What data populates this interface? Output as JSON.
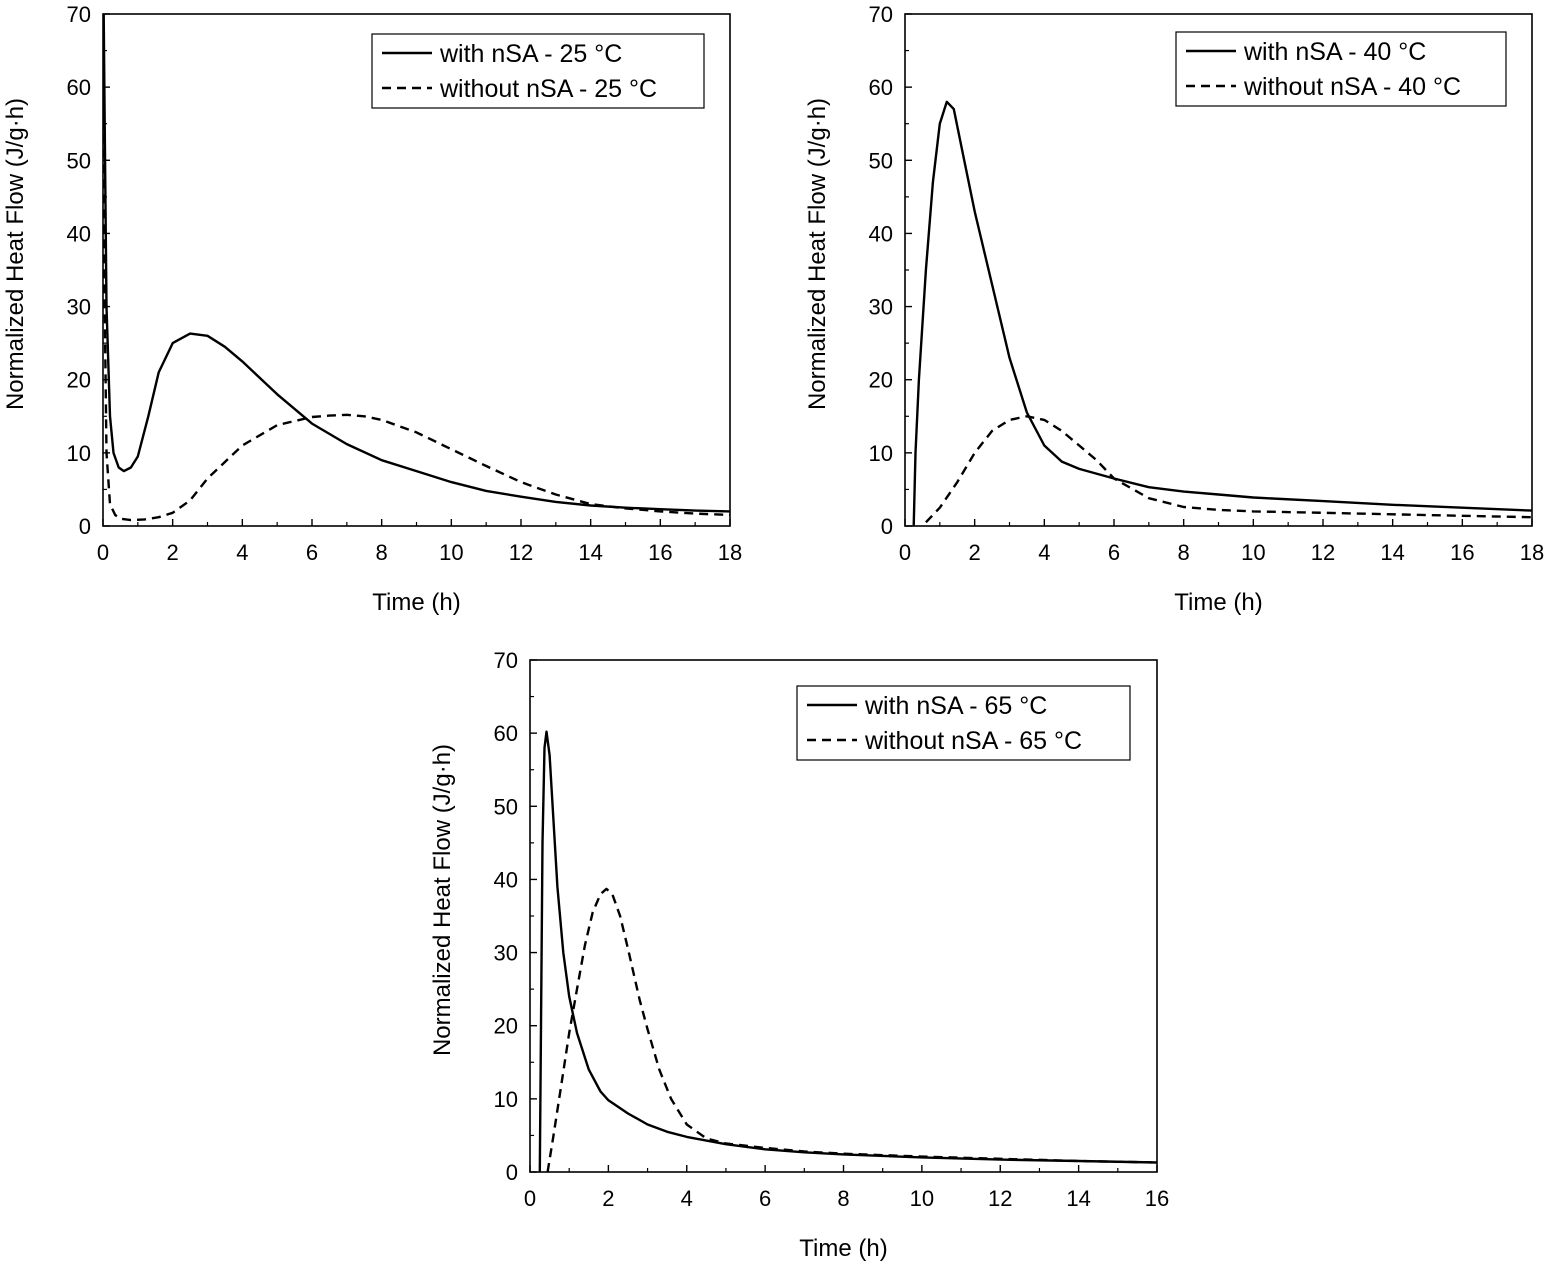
{
  "chart_data": [
    {
      "type": "line",
      "xlabel": "Time (h)",
      "ylabel": "Normalized Heat Flow (J/g·h)",
      "xlim": [
        0,
        18
      ],
      "ylim": [
        0,
        70
      ],
      "xticks": [
        0,
        2,
        4,
        6,
        8,
        10,
        12,
        14,
        16,
        18
      ],
      "yticks": [
        0,
        10,
        20,
        30,
        40,
        50,
        60,
        70
      ],
      "grid": false,
      "legend_position": "top-right",
      "series": [
        {
          "name": "with nSA - 25 °C",
          "style": "solid",
          "x": [
            0,
            0.02,
            0.05,
            0.1,
            0.2,
            0.3,
            0.45,
            0.6,
            0.8,
            1.0,
            1.3,
            1.6,
            2.0,
            2.5,
            3.0,
            3.5,
            4.0,
            5.0,
            6.0,
            7.0,
            8.0,
            9.0,
            10.0,
            11.0,
            12.0,
            13.0,
            14.0,
            15.0,
            16.0,
            17.0,
            18.0
          ],
          "y": [
            72,
            70,
            55,
            30,
            15,
            10,
            8,
            7.5,
            8,
            9.5,
            15,
            21,
            25,
            26.3,
            26,
            24.5,
            22.5,
            18,
            14,
            11.2,
            9,
            7.5,
            6,
            4.8,
            4,
            3.3,
            2.8,
            2.5,
            2.3,
            2.1,
            2.0
          ]
        },
        {
          "name": "without nSA - 25 °C",
          "style": "dashed",
          "x": [
            0,
            0.02,
            0.05,
            0.1,
            0.2,
            0.35,
            0.5,
            0.8,
            1.2,
            1.6,
            2.0,
            2.5,
            3.0,
            4.0,
            5.0,
            6.0,
            6.5,
            7.0,
            7.5,
            8.0,
            9.0,
            10.0,
            11.0,
            12.0,
            13.0,
            14.0,
            15.0,
            16.0,
            17.0,
            18.0
          ],
          "y": [
            72,
            55,
            30,
            10,
            3,
            1.5,
            1,
            0.8,
            0.9,
            1.2,
            1.8,
            3.5,
            6.5,
            11,
            13.8,
            14.9,
            15.1,
            15.2,
            15,
            14.5,
            12.8,
            10.5,
            8.2,
            6,
            4.3,
            3,
            2.4,
            2.0,
            1.7,
            1.5
          ]
        }
      ]
    },
    {
      "type": "line",
      "xlabel": "Time (h)",
      "ylabel": "Normalized Heat Flow (J/g·h)",
      "xlim": [
        0,
        18
      ],
      "ylim": [
        0,
        70
      ],
      "xticks": [
        0,
        2,
        4,
        6,
        8,
        10,
        12,
        14,
        16,
        18
      ],
      "yticks": [
        0,
        10,
        20,
        30,
        40,
        50,
        60,
        70
      ],
      "grid": false,
      "legend_position": "top-right",
      "series": [
        {
          "name": "with nSA - 40 °C",
          "style": "solid",
          "x": [
            0.25,
            0.3,
            0.4,
            0.6,
            0.8,
            1.0,
            1.2,
            1.4,
            1.7,
            2.0,
            2.5,
            3.0,
            3.5,
            4.0,
            4.5,
            5.0,
            6.0,
            7.0,
            8.0,
            9.0,
            10.0,
            12.0,
            14.0,
            16.0,
            18.0
          ],
          "y": [
            0,
            10,
            20,
            35,
            47,
            55,
            58,
            57,
            50,
            43,
            33,
            23,
            15.5,
            11,
            8.8,
            7.8,
            6.5,
            5.3,
            4.7,
            4.3,
            3.9,
            3.4,
            2.9,
            2.5,
            2.1
          ]
        },
        {
          "name": "without nSA - 40 °C",
          "style": "dashed",
          "x": [
            0.6,
            1.0,
            1.5,
            2.0,
            2.5,
            3.0,
            3.5,
            4.0,
            4.5,
            5.0,
            5.5,
            6.0,
            7.0,
            8.0,
            9.0,
            10.0,
            12.0,
            14.0,
            16.0,
            18.0
          ],
          "y": [
            0.5,
            2.5,
            6,
            10,
            13,
            14.5,
            15,
            14.5,
            13,
            11,
            9,
            6.5,
            3.8,
            2.6,
            2.2,
            2.0,
            1.8,
            1.6,
            1.4,
            1.2
          ]
        }
      ]
    },
    {
      "type": "line",
      "xlabel": "Time (h)",
      "ylabel": "Normalized Heat Flow (J/g·h)",
      "xlim": [
        0,
        16
      ],
      "ylim": [
        0,
        70
      ],
      "xticks": [
        0,
        2,
        4,
        6,
        8,
        10,
        12,
        14,
        16
      ],
      "yticks": [
        0,
        10,
        20,
        30,
        40,
        50,
        60,
        70
      ],
      "grid": false,
      "legend_position": "top-right",
      "series": [
        {
          "name": "with nSA - 65 °C",
          "style": "solid",
          "x": [
            0.25,
            0.28,
            0.32,
            0.37,
            0.42,
            0.5,
            0.6,
            0.7,
            0.85,
            1.0,
            1.2,
            1.5,
            1.8,
            2.0,
            2.5,
            3.0,
            3.5,
            4.0,
            5.0,
            6.0,
            7.0,
            8.0,
            10.0,
            12.0,
            14.0,
            16.0
          ],
          "y": [
            0,
            20,
            45,
            58,
            60.2,
            57,
            48,
            39,
            30,
            24,
            19,
            14,
            11,
            9.8,
            8,
            6.5,
            5.5,
            4.8,
            3.8,
            3.1,
            2.7,
            2.4,
            2.0,
            1.7,
            1.5,
            1.3
          ]
        },
        {
          "name": "without nSA - 65 °C",
          "style": "dashed",
          "x": [
            0.45,
            0.6,
            0.8,
            1.0,
            1.2,
            1.4,
            1.6,
            1.8,
            1.95,
            2.1,
            2.3,
            2.5,
            2.8,
            3.0,
            3.3,
            3.6,
            4.0,
            4.5,
            5.0,
            6.0,
            7.0,
            8.0,
            10.0,
            12.0,
            14.0,
            16.0
          ],
          "y": [
            0,
            5,
            12,
            19,
            25,
            31,
            35.5,
            38,
            38.7,
            38,
            35,
            30.5,
            23.5,
            19.5,
            14,
            10,
            6.5,
            4.6,
            3.9,
            3.3,
            2.8,
            2.5,
            2.1,
            1.8,
            1.5,
            1.3
          ]
        }
      ]
    }
  ]
}
